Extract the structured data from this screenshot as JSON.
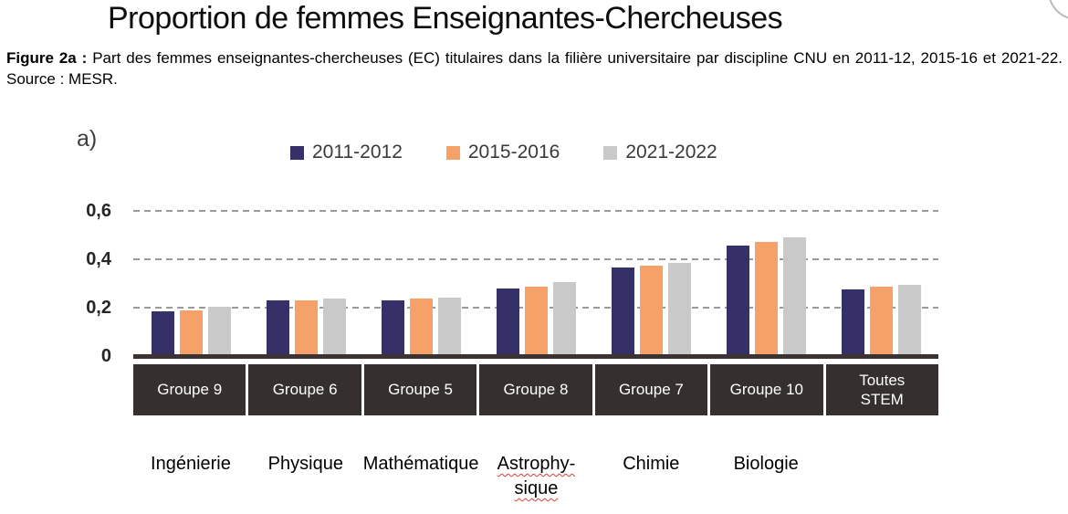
{
  "page": {
    "title": "Proportion de femmes Enseignantes-Chercheuses",
    "caption_label": "Figure 2a :",
    "caption_text": "Part des femmes enseignantes-chercheuses (EC) titulaires dans la filière universitaire par discipline CNU en 2011-12, 2015-16 et 2021-22. Source : MESR.",
    "panel_label": "a)"
  },
  "chart_data": {
    "type": "bar",
    "title": "Proportion de femmes Enseignantes-Chercheuses",
    "categories": [
      "Groupe 9",
      "Groupe 6",
      "Groupe 5",
      "Groupe 8",
      "Groupe 7",
      "Groupe 10",
      "Toutes STEM"
    ],
    "disciplines": [
      {
        "text": "Ingénierie",
        "spellcheck": false
      },
      {
        "text": "Physique",
        "spellcheck": false
      },
      {
        "text": "Mathématique",
        "spellcheck": false
      },
      {
        "text": "Astrophy-\nsique",
        "spellcheck": true
      },
      {
        "text": "Chimie",
        "spellcheck": false
      },
      {
        "text": "Biologie",
        "spellcheck": false
      },
      {
        "text": "",
        "spellcheck": false
      }
    ],
    "series": [
      {
        "name": "2011-2012",
        "color": "#363069",
        "values": [
          0.185,
          0.23,
          0.23,
          0.28,
          0.365,
          0.455,
          0.275
        ]
      },
      {
        "name": "2015-2016",
        "color": "#F6A167",
        "values": [
          0.19,
          0.23,
          0.236,
          0.287,
          0.375,
          0.47,
          0.285
        ]
      },
      {
        "name": "2021-2022",
        "color": "#C9C9C9",
        "values": [
          0.205,
          0.238,
          0.243,
          0.306,
          0.385,
          0.49,
          0.295
        ]
      }
    ],
    "ylim": [
      0,
      0.6
    ],
    "yticks": [
      {
        "value": 0.6,
        "label": "0,6"
      },
      {
        "value": 0.4,
        "label": "0,4"
      },
      {
        "value": 0.2,
        "label": "0,2"
      },
      {
        "value": 0.0,
        "label": "0"
      }
    ],
    "grid": "horizontal-dashed",
    "legend_position": "top",
    "colors": {
      "axis_line": "#3A3332",
      "category_box_bg": "#352F2E",
      "category_box_text": "#FFFFFF",
      "gridline": "#9B9B9B",
      "spellcheck_underline": "#E03C31"
    }
  }
}
